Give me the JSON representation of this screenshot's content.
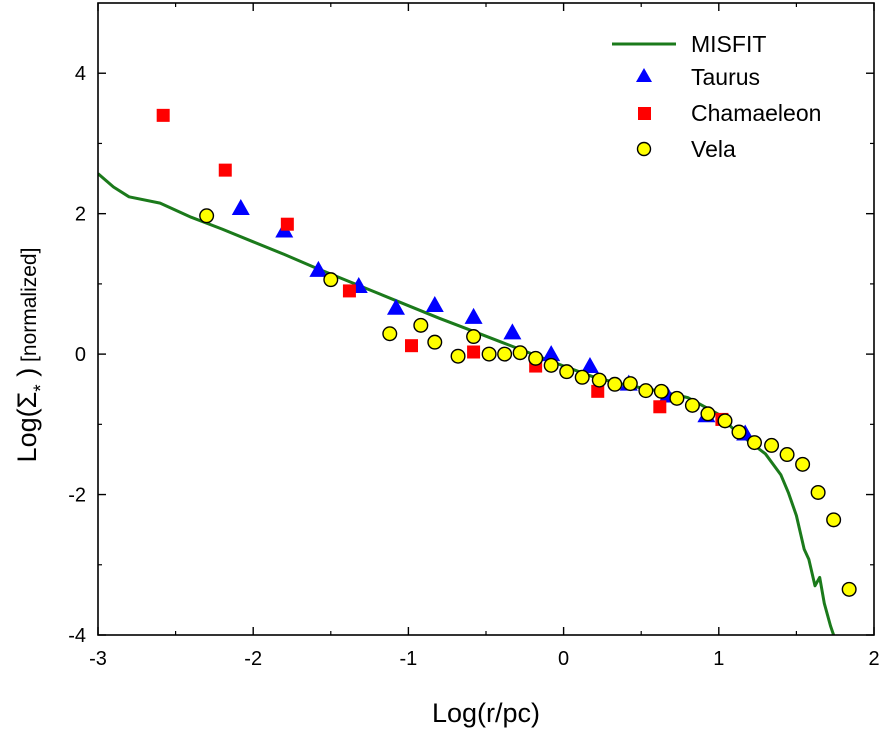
{
  "chart_data": {
    "type": "scatter",
    "xlabel": "Log(r/pc)",
    "ylabel": {
      "prefix": "Log(",
      "symbol": "Σ",
      "subscript": "*",
      "suffix": " )",
      "qualifier": " [normalized]"
    },
    "xlim": [
      -3,
      2
    ],
    "ylim": [
      -4,
      5
    ],
    "xticks": [
      -3,
      -2,
      -1,
      0,
      1,
      2
    ],
    "yticks": [
      -4,
      -2,
      0,
      2,
      4
    ],
    "xtick_labels": [
      "-3",
      "-2",
      "-1",
      "0",
      "1",
      "2"
    ],
    "ytick_labels": [
      "-4",
      "-2",
      "0",
      "2",
      "4"
    ],
    "legend_position": "top-right",
    "colors": {
      "misfit": "#1b7a1b",
      "taurus": "#0000ff",
      "chamaeleon": "#ff0000",
      "vela": "#ffff00"
    },
    "series": [
      {
        "name": "MISFIT",
        "kind": "line",
        "points": [
          [
            -3.0,
            2.57
          ],
          [
            -2.9,
            2.38
          ],
          [
            -2.8,
            2.24
          ],
          [
            -2.6,
            2.15
          ],
          [
            -2.4,
            1.95
          ],
          [
            -2.2,
            1.78
          ],
          [
            -2.0,
            1.6
          ],
          [
            -1.8,
            1.42
          ],
          [
            -1.6,
            1.23
          ],
          [
            -1.4,
            1.05
          ],
          [
            -1.2,
            0.87
          ],
          [
            -1.0,
            0.69
          ],
          [
            -0.8,
            0.51
          ],
          [
            -0.6,
            0.34
          ],
          [
            -0.4,
            0.17
          ],
          [
            -0.2,
            0.0
          ],
          [
            0.0,
            -0.17
          ],
          [
            0.2,
            -0.33
          ],
          [
            0.4,
            -0.44
          ],
          [
            0.6,
            -0.52
          ],
          [
            0.8,
            -0.62
          ],
          [
            1.0,
            -0.86
          ],
          [
            1.1,
            -1.08
          ],
          [
            1.2,
            -1.25
          ],
          [
            1.3,
            -1.42
          ],
          [
            1.4,
            -1.72
          ],
          [
            1.45,
            -1.98
          ],
          [
            1.5,
            -2.3
          ],
          [
            1.55,
            -2.78
          ],
          [
            1.58,
            -2.92
          ],
          [
            1.62,
            -3.3
          ],
          [
            1.65,
            -3.18
          ],
          [
            1.68,
            -3.55
          ],
          [
            1.72,
            -3.87
          ],
          [
            1.74,
            -4.0
          ]
        ]
      },
      {
        "name": "Taurus",
        "kind": "triangle",
        "points": [
          [
            -2.08,
            2.08
          ],
          [
            -1.8,
            1.76
          ],
          [
            -1.58,
            1.2
          ],
          [
            -1.32,
            0.97
          ],
          [
            -1.08,
            0.66
          ],
          [
            -0.83,
            0.7
          ],
          [
            -0.58,
            0.53
          ],
          [
            -0.33,
            0.31
          ],
          [
            -0.08,
            0.0
          ],
          [
            0.17,
            -0.17
          ],
          [
            0.42,
            -0.42
          ],
          [
            0.67,
            -0.59
          ],
          [
            0.92,
            -0.87
          ],
          [
            1.17,
            -1.13
          ]
        ]
      },
      {
        "name": "Chamaeleon",
        "kind": "square",
        "points": [
          [
            -2.58,
            3.4
          ],
          [
            -2.18,
            2.62
          ],
          [
            -1.78,
            1.85
          ],
          [
            -1.38,
            0.9
          ],
          [
            -0.98,
            0.12
          ],
          [
            -0.58,
            0.03
          ],
          [
            -0.18,
            -0.17
          ],
          [
            0.22,
            -0.53
          ],
          [
            0.62,
            -0.75
          ],
          [
            1.02,
            -0.93
          ]
        ]
      },
      {
        "name": "Vela",
        "kind": "circle",
        "points": [
          [
            -2.3,
            1.97
          ],
          [
            -1.5,
            1.06
          ],
          [
            -1.12,
            0.29
          ],
          [
            -0.92,
            0.41
          ],
          [
            -0.83,
            0.17
          ],
          [
            -0.68,
            -0.03
          ],
          [
            -0.58,
            0.25
          ],
          [
            -0.48,
            0.0
          ],
          [
            -0.38,
            0.0
          ],
          [
            -0.28,
            0.02
          ],
          [
            -0.18,
            -0.06
          ],
          [
            -0.08,
            -0.16
          ],
          [
            0.02,
            -0.25
          ],
          [
            0.12,
            -0.33
          ],
          [
            0.23,
            -0.37
          ],
          [
            0.33,
            -0.43
          ],
          [
            0.43,
            -0.42
          ],
          [
            0.53,
            -0.52
          ],
          [
            0.63,
            -0.53
          ],
          [
            0.73,
            -0.63
          ],
          [
            0.83,
            -0.73
          ],
          [
            0.93,
            -0.85
          ],
          [
            1.04,
            -0.95
          ],
          [
            1.13,
            -1.11
          ],
          [
            1.23,
            -1.26
          ],
          [
            1.34,
            -1.3
          ],
          [
            1.44,
            -1.43
          ],
          [
            1.54,
            -1.57
          ],
          [
            1.64,
            -1.97
          ],
          [
            1.74,
            -2.36
          ],
          [
            1.84,
            -3.35
          ]
        ]
      }
    ]
  }
}
